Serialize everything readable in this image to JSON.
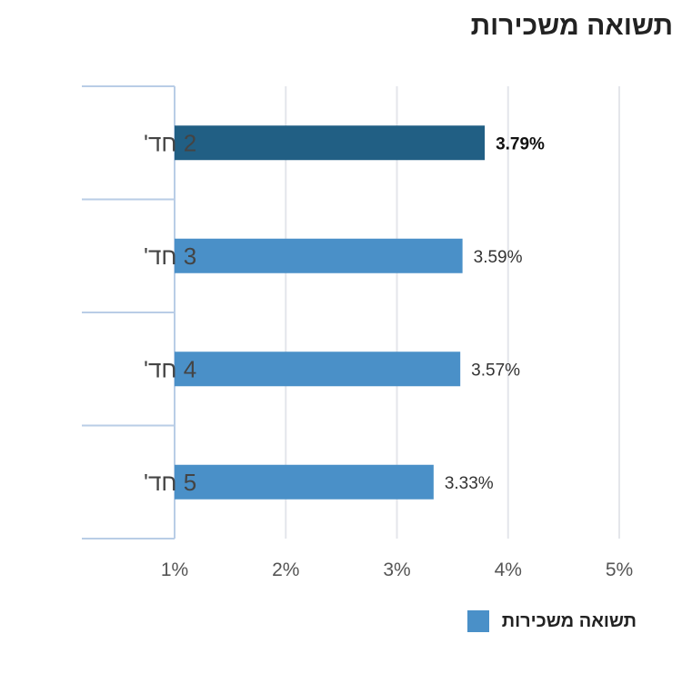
{
  "colors": {
    "highlight_bar": "#215f84",
    "bar": "#4a90c8",
    "grid": "#e4e6eb",
    "axis": "#b9cde6",
    "tick_text": "#555555",
    "category_text": "#444444",
    "label_text": "#333333",
    "highlight_label_text": "#111111"
  },
  "legend": {
    "label": "תשואה משכירות"
  },
  "chart_data": {
    "type": "bar",
    "orientation": "horizontal",
    "title": "תשואה משכירות",
    "categories": [
      "2 חד'",
      "3 חד'",
      "4 חד'",
      "5 חד'"
    ],
    "series": [
      {
        "name": "תשואה משכירות",
        "values": [
          3.79,
          3.59,
          3.57,
          3.33
        ],
        "labels": [
          "3.79%",
          "3.59%",
          "3.57%",
          "3.33%"
        ],
        "highlight_index": 0
      }
    ],
    "xlim": [
      1,
      5
    ],
    "xticks": [
      1,
      2,
      3,
      4,
      5
    ],
    "xtick_labels": [
      "1%",
      "2%",
      "3%",
      "4%",
      "5%"
    ],
    "grid": true,
    "legend_position": "bottom-right"
  }
}
